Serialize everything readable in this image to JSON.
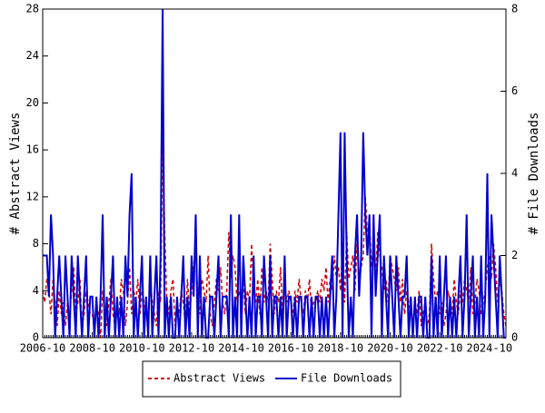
{
  "chart_data": {
    "type": "line",
    "categories": [
      "2006-10",
      null,
      null,
      null,
      null,
      null,
      null,
      null,
      null,
      null,
      null,
      null,
      null,
      null,
      null,
      null,
      null,
      null,
      null,
      null,
      null,
      null,
      null,
      null,
      "2008-10",
      null,
      null,
      null,
      null,
      null,
      null,
      null,
      null,
      null,
      null,
      null,
      null,
      null,
      null,
      null,
      null,
      null,
      null,
      null,
      null,
      null,
      null,
      null,
      "2010-10",
      null,
      null,
      null,
      null,
      null,
      null,
      null,
      null,
      null,
      null,
      null,
      null,
      null,
      null,
      null,
      null,
      null,
      null,
      null,
      null,
      null,
      null,
      null,
      "2012-10",
      null,
      null,
      null,
      null,
      null,
      null,
      null,
      null,
      null,
      null,
      null,
      null,
      null,
      null,
      null,
      null,
      null,
      null,
      null,
      null,
      null,
      null,
      null,
      "2014-10",
      null,
      null,
      null,
      null,
      null,
      null,
      null,
      null,
      null,
      null,
      null,
      null,
      null,
      null,
      null,
      null,
      null,
      null,
      null,
      null,
      null,
      null,
      null,
      "2016-10",
      null,
      null,
      null,
      null,
      null,
      null,
      null,
      null,
      null,
      null,
      null,
      null,
      null,
      null,
      null,
      null,
      null,
      null,
      null,
      null,
      null,
      null,
      null,
      "2018-10",
      null,
      null,
      null,
      null,
      null,
      null,
      null,
      null,
      null,
      null,
      null,
      null,
      null,
      null,
      null,
      null,
      null,
      null,
      null,
      null,
      null,
      null,
      null,
      "2020-10",
      null,
      null,
      null,
      null,
      null,
      null,
      null,
      null,
      null,
      null,
      null,
      null,
      null,
      null,
      null,
      null,
      null,
      null,
      null,
      null,
      null,
      null,
      null,
      "2022-10",
      null,
      null,
      null,
      null,
      null,
      null,
      null,
      null,
      null,
      null,
      null,
      null,
      null,
      null,
      null,
      null,
      null,
      null,
      null,
      null,
      null,
      null,
      null,
      "2024-10",
      null,
      null,
      null,
      null,
      null,
      null,
      null,
      null
    ],
    "series": [
      {
        "name": "Abstract Views",
        "color": "#cc0000",
        "dash": true,
        "values": [
          4,
          3,
          5,
          4,
          2,
          5,
          3,
          1,
          4,
          2,
          3,
          1,
          3,
          2,
          4,
          6,
          2,
          3,
          5,
          1,
          2,
          4,
          3,
          2,
          2,
          1,
          3,
          2,
          0,
          4,
          2,
          1,
          3,
          5,
          2,
          1,
          3,
          2,
          5,
          4,
          1,
          3,
          6,
          2,
          4,
          3,
          5,
          2,
          4,
          3,
          2,
          1,
          5,
          3,
          2,
          1,
          4,
          3,
          17,
          9,
          3,
          2,
          4,
          5,
          1,
          3,
          2,
          4,
          3,
          1,
          5,
          2,
          4,
          6,
          8,
          3,
          2,
          5,
          4,
          3,
          7,
          2,
          1,
          3,
          5,
          4,
          6,
          3,
          2,
          4,
          9,
          5,
          7,
          6,
          3,
          4,
          3,
          5,
          2,
          4,
          3,
          8,
          4,
          3,
          5,
          2,
          6,
          3,
          4,
          3,
          8,
          5,
          2,
          4,
          3,
          6,
          2,
          5,
          3,
          4,
          3,
          2,
          4,
          3,
          5,
          3,
          2,
          4,
          3,
          5,
          2,
          3,
          3,
          4,
          3,
          5,
          4,
          6,
          3,
          5,
          4,
          7,
          5,
          6,
          4,
          8,
          3,
          9,
          5,
          6,
          7,
          4,
          8,
          5,
          6,
          7,
          12,
          9,
          10,
          6,
          8,
          5,
          9,
          7,
          6,
          4,
          5,
          3,
          7,
          6,
          5,
          4,
          6,
          3,
          5,
          2,
          4,
          3,
          2,
          1,
          3,
          2,
          4,
          1,
          2,
          3,
          1,
          2,
          8,
          5,
          3,
          4,
          2,
          3,
          1,
          2,
          4,
          3,
          2,
          5,
          3,
          2,
          4,
          3,
          5,
          4,
          3,
          6,
          2,
          3,
          5,
          4,
          2,
          3,
          4,
          6,
          7,
          5,
          8,
          6,
          3,
          5,
          4,
          2,
          1
        ]
      },
      {
        "name": "File Downloads",
        "color": "#0000cc",
        "axis": "y2",
        "values": [
          2,
          2,
          2,
          1,
          3,
          2,
          0,
          1,
          2,
          1,
          0,
          2,
          1,
          0,
          2,
          1,
          0,
          2,
          1,
          0,
          1,
          2,
          0,
          1,
          1,
          0,
          1,
          0,
          1,
          3,
          0,
          1,
          0,
          1,
          2,
          0,
          1,
          0,
          1,
          0,
          2,
          1,
          3,
          4,
          0,
          1,
          0,
          1,
          2,
          0,
          1,
          0,
          2,
          0,
          1,
          2,
          0,
          2,
          8,
          0,
          1,
          0,
          1,
          0,
          0,
          1,
          0,
          1,
          2,
          0,
          1,
          0,
          2,
          1,
          3,
          0,
          2,
          0,
          1,
          0,
          0,
          1,
          1,
          0,
          1,
          2,
          0,
          1,
          1,
          1,
          0,
          3,
          0,
          1,
          0,
          3,
          0,
          2,
          1,
          0,
          1,
          0,
          2,
          0,
          1,
          1,
          0,
          2,
          1,
          0,
          2,
          0,
          1,
          1,
          0,
          1,
          0,
          2,
          0,
          1,
          1,
          0,
          1,
          0,
          1,
          1,
          0,
          1,
          1,
          0,
          1,
          0,
          1,
          1,
          0,
          1,
          0,
          1,
          0,
          1,
          2,
          0,
          1,
          3,
          5,
          0,
          5,
          2,
          0,
          1,
          0,
          2,
          3,
          1,
          2,
          5,
          3,
          2,
          3,
          0,
          3,
          1,
          2,
          3,
          0,
          2,
          1,
          0,
          2,
          1,
          0,
          2,
          1,
          0,
          1,
          1,
          2,
          0,
          1,
          0,
          1,
          0,
          1,
          1,
          0,
          1,
          0,
          0,
          2,
          0,
          1,
          0,
          2,
          0,
          1,
          2,
          0,
          1,
          0,
          1,
          0,
          1,
          2,
          0,
          1,
          3,
          0,
          1,
          2,
          0,
          1,
          0,
          2,
          0,
          1,
          4,
          0,
          3,
          2,
          1,
          0,
          2,
          1,
          0,
          0
        ]
      }
    ],
    "y_label": "# Abstract Views",
    "y2_label": "# File Downloads",
    "ylim": [
      0,
      28
    ],
    "yticks": [
      0,
      4,
      8,
      12,
      16,
      20,
      24,
      28
    ],
    "y2lim": [
      0,
      8
    ],
    "y2ticks": [
      0,
      2,
      4,
      6,
      8
    ]
  }
}
